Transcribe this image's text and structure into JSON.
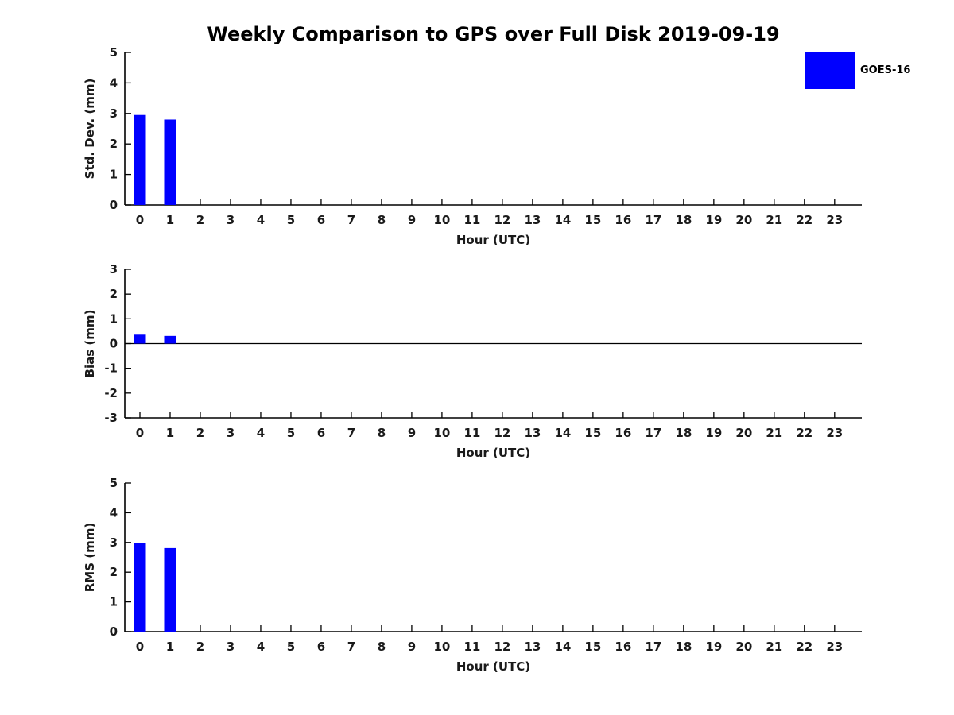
{
  "title": "Weekly Comparison to GPS over Full Disk 2019-09-19",
  "legend": {
    "label": "GOES-16",
    "swatch_color": "#0000ff"
  },
  "colors": {
    "bar": "#0000ff",
    "axis": "#000000",
    "text": "#1a1a1a",
    "background": "#ffffff"
  },
  "chart_data": [
    {
      "type": "bar",
      "ylabel": "Std. Dev. (mm)",
      "xlabel": "Hour (UTC)",
      "ylim": [
        0,
        5
      ],
      "yticks": [
        0,
        1,
        2,
        3,
        4,
        5
      ],
      "xlim": [
        -0.5,
        23.9
      ],
      "xticks": [
        0,
        1,
        2,
        3,
        4,
        5,
        6,
        7,
        8,
        9,
        10,
        11,
        12,
        13,
        14,
        15,
        16,
        17,
        18,
        19,
        20,
        21,
        22,
        23
      ],
      "grid": false,
      "zero_line": false,
      "series": [
        {
          "name": "GOES-16",
          "color": "#0000ff",
          "x": [
            0,
            1
          ],
          "values": [
            2.95,
            2.8
          ]
        }
      ]
    },
    {
      "type": "bar",
      "ylabel": "Bias (mm)",
      "xlabel": "Hour (UTC)",
      "ylim": [
        -3,
        3
      ],
      "yticks": [
        -3,
        -2,
        -1,
        0,
        1,
        2,
        3
      ],
      "xlim": [
        -0.5,
        23.9
      ],
      "xticks": [
        0,
        1,
        2,
        3,
        4,
        5,
        6,
        7,
        8,
        9,
        10,
        11,
        12,
        13,
        14,
        15,
        16,
        17,
        18,
        19,
        20,
        21,
        22,
        23
      ],
      "grid": false,
      "zero_line": true,
      "series": [
        {
          "name": "GOES-16",
          "color": "#0000ff",
          "x": [
            0,
            1
          ],
          "values": [
            0.36,
            0.31
          ]
        }
      ]
    },
    {
      "type": "bar",
      "ylabel": "RMS (mm)",
      "xlabel": "Hour (UTC)",
      "ylim": [
        0,
        5
      ],
      "yticks": [
        0,
        1,
        2,
        3,
        4,
        5
      ],
      "xlim": [
        -0.5,
        23.9
      ],
      "xticks": [
        0,
        1,
        2,
        3,
        4,
        5,
        6,
        7,
        8,
        9,
        10,
        11,
        12,
        13,
        14,
        15,
        16,
        17,
        18,
        19,
        20,
        21,
        22,
        23
      ],
      "grid": false,
      "zero_line": false,
      "series": [
        {
          "name": "GOES-16",
          "color": "#0000ff",
          "x": [
            0,
            1
          ],
          "values": [
            2.97,
            2.81
          ]
        }
      ]
    }
  ]
}
